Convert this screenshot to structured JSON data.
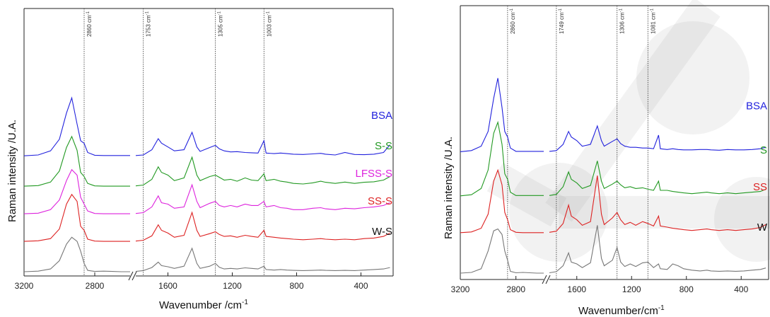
{
  "panels": [
    {
      "ylabel": "Raman intensity /U.A.",
      "xlabel": "Wavenumber /cm",
      "xlabel_sup": "-1",
      "xticks": [
        "3200",
        "2800",
        "1600",
        "1200",
        "800",
        "400"
      ],
      "vlines": [
        {
          "label": "2860 cm",
          "sup": "-1"
        },
        {
          "label": "1753 cm",
          "sup": "-1"
        },
        {
          "label": "1305 cm",
          "sup": "-1"
        },
        {
          "label": "1003 cm",
          "sup": "-1"
        }
      ],
      "series": [
        {
          "name": "BSA",
          "color": "#2222dd"
        },
        {
          "name": "S-S",
          "color": "#229922"
        },
        {
          "name": "LFSS-S",
          "color": "#dd22dd"
        },
        {
          "name": "SS-S",
          "color": "#dd2222"
        },
        {
          "name": "W-S",
          "color": "#111111"
        }
      ]
    },
    {
      "ylabel": "Raman intensity /U.A.",
      "xlabel": "Wavenumber/cm",
      "xlabel_sup": "-1",
      "xticks": [
        "3200",
        "2800",
        "1600",
        "1200",
        "800",
        "400"
      ],
      "vlines": [
        {
          "label": "2860 cm",
          "sup": "-1"
        },
        {
          "label": "1749 cm",
          "sup": "-1"
        },
        {
          "label": "1306 cm",
          "sup": "-1"
        },
        {
          "label": "1081 cm",
          "sup": "-1"
        }
      ],
      "series": [
        {
          "name": "BSA",
          "color": "#2222dd"
        },
        {
          "name": "S",
          "color": "#229922"
        },
        {
          "name": "SS",
          "color": "#dd2222"
        },
        {
          "name": "W",
          "color": "#111111"
        }
      ]
    }
  ],
  "chart_data": [
    {
      "type": "line",
      "xlabel": "Wavenumber /cm-1",
      "ylabel": "Raman intensity /U.A.",
      "x_axis_reversed": true,
      "axis_break": [
        2600,
        1800
      ],
      "xlim": [
        3200,
        200
      ],
      "x_ticks": [
        3200,
        2800,
        1600,
        1200,
        800,
        400
      ],
      "y_ticks": [],
      "annotated_lines_cm-1": [
        2860,
        1753,
        1305,
        1003
      ],
      "x": [
        3200,
        3120,
        3050,
        3000,
        2960,
        2930,
        2900,
        2880,
        2860,
        2840,
        2800,
        2750,
        2700,
        2650,
        2600,
        1800,
        1753,
        1700,
        1660,
        1640,
        1600,
        1560,
        1500,
        1450,
        1420,
        1400,
        1340,
        1305,
        1280,
        1250,
        1210,
        1170,
        1120,
        1080,
        1040,
        1003,
        990,
        940,
        900,
        860,
        820,
        760,
        700,
        650,
        620,
        560,
        500,
        440,
        380,
        320,
        260,
        220
      ],
      "series": [
        {
          "name": "BSA",
          "color": "#2222dd",
          "offset": 4.2,
          "values": [
            0.0,
            0.03,
            0.18,
            0.6,
            1.55,
            2.1,
            1.15,
            0.55,
            0.45,
            0.12,
            0.02,
            0.01,
            0.01,
            0.01,
            0.01,
            0.01,
            0.03,
            0.22,
            0.62,
            0.46,
            0.32,
            0.18,
            0.22,
            0.85,
            0.32,
            0.16,
            0.3,
            0.38,
            0.25,
            0.18,
            0.14,
            0.15,
            0.12,
            0.11,
            0.1,
            0.55,
            0.1,
            0.08,
            0.1,
            0.08,
            0.06,
            0.05,
            0.07,
            0.09,
            0.06,
            0.03,
            0.12,
            0.05,
            0.04,
            0.06,
            0.12,
            0.4
          ]
        },
        {
          "name": "S-S",
          "color": "#229922",
          "offset": 3.1,
          "values": [
            0.0,
            0.02,
            0.15,
            0.55,
            1.4,
            1.8,
            1.3,
            0.5,
            0.35,
            0.1,
            0.01,
            0.0,
            0.0,
            0.0,
            0.0,
            0.01,
            0.04,
            0.25,
            0.7,
            0.5,
            0.4,
            0.2,
            0.3,
            1.05,
            0.4,
            0.2,
            0.35,
            0.4,
            0.32,
            0.22,
            0.25,
            0.18,
            0.3,
            0.22,
            0.2,
            0.45,
            0.2,
            0.25,
            0.18,
            0.15,
            0.1,
            0.08,
            0.12,
            0.18,
            0.14,
            0.1,
            0.15,
            0.1,
            0.14,
            0.16,
            0.22,
            0.35
          ]
        },
        {
          "name": "LFSS-S",
          "color": "#dd22dd",
          "offset": 2.1,
          "values": [
            0.0,
            0.02,
            0.15,
            0.5,
            1.2,
            1.6,
            1.4,
            0.6,
            0.35,
            0.1,
            0.01,
            0.0,
            0.0,
            0.0,
            0.0,
            0.01,
            0.04,
            0.25,
            0.65,
            0.4,
            0.35,
            0.2,
            0.25,
            1.05,
            0.45,
            0.22,
            0.38,
            0.45,
            0.3,
            0.25,
            0.3,
            0.25,
            0.35,
            0.3,
            0.3,
            0.45,
            0.25,
            0.3,
            0.22,
            0.2,
            0.15,
            0.15,
            0.2,
            0.22,
            0.18,
            0.15,
            0.2,
            0.18,
            0.22,
            0.25,
            0.3,
            0.4
          ]
        },
        {
          "name": "SS-S",
          "color": "#dd2222",
          "offset": 1.1,
          "values": [
            0.0,
            0.02,
            0.1,
            0.45,
            1.35,
            1.7,
            1.45,
            0.55,
            0.4,
            0.08,
            0.01,
            0.0,
            0.0,
            0.0,
            0.0,
            0.01,
            0.04,
            0.2,
            0.6,
            0.4,
            0.3,
            0.15,
            0.22,
            1.05,
            0.4,
            0.18,
            0.28,
            0.35,
            0.25,
            0.18,
            0.2,
            0.15,
            0.22,
            0.18,
            0.15,
            0.4,
            0.18,
            0.15,
            0.12,
            0.1,
            0.08,
            0.06,
            0.08,
            0.1,
            0.08,
            0.06,
            0.08,
            0.06,
            0.1,
            0.12,
            0.18,
            0.3
          ]
        },
        {
          "name": "W-S",
          "color": "#777777",
          "offset": 0.0,
          "values": [
            0.0,
            0.02,
            0.1,
            0.4,
            1.0,
            1.25,
            1.1,
            0.75,
            0.3,
            0.05,
            0.01,
            0.02,
            0.01,
            0.0,
            0.0,
            0.01,
            0.04,
            0.15,
            0.35,
            0.22,
            0.18,
            0.12,
            0.2,
            0.85,
            0.3,
            0.12,
            0.2,
            0.3,
            0.16,
            0.1,
            0.12,
            0.1,
            0.14,
            0.12,
            0.1,
            0.2,
            0.08,
            0.06,
            0.08,
            0.06,
            0.05,
            0.04,
            0.05,
            0.06,
            0.05,
            0.04,
            0.05,
            0.04,
            0.06,
            0.08,
            0.1,
            0.15
          ]
        }
      ]
    },
    {
      "type": "line",
      "xlabel": "Wavenumber/cm-1",
      "ylabel": "Raman intensity /U.A.",
      "x_axis_reversed": true,
      "axis_break": [
        2600,
        1800
      ],
      "xlim": [
        3200,
        200
      ],
      "x_ticks": [
        3200,
        2800,
        1600,
        1200,
        800,
        400
      ],
      "y_ticks": [],
      "annotated_lines_cm-1": [
        2860,
        1749,
        1306,
        1081
      ],
      "x": [
        3200,
        3120,
        3050,
        3000,
        2960,
        2930,
        2900,
        2880,
        2860,
        2840,
        2800,
        2750,
        2700,
        2650,
        2600,
        1800,
        1749,
        1700,
        1660,
        1640,
        1600,
        1560,
        1500,
        1450,
        1420,
        1400,
        1340,
        1306,
        1280,
        1250,
        1210,
        1170,
        1120,
        1081,
        1040,
        1003,
        990,
        940,
        900,
        860,
        820,
        760,
        700,
        650,
        620,
        560,
        500,
        440,
        380,
        320,
        260,
        220
      ],
      "series": [
        {
          "name": "BSA",
          "color": "#2222dd",
          "offset": 3.3,
          "values": [
            0.0,
            0.03,
            0.15,
            0.55,
            1.45,
            2.0,
            1.2,
            0.55,
            0.4,
            0.1,
            0.01,
            0.01,
            0.01,
            0.01,
            0.01,
            0.01,
            0.03,
            0.2,
            0.55,
            0.4,
            0.3,
            0.15,
            0.2,
            0.7,
            0.3,
            0.15,
            0.28,
            0.35,
            0.22,
            0.15,
            0.12,
            0.12,
            0.1,
            0.1,
            0.08,
            0.45,
            0.08,
            0.06,
            0.08,
            0.06,
            0.05,
            0.05,
            0.06,
            0.06,
            0.05,
            0.04,
            0.06,
            0.05,
            0.05,
            0.06,
            0.08,
            0.12
          ]
        },
        {
          "name": "S",
          "color": "#229922",
          "offset": 2.1,
          "values": [
            0.0,
            0.03,
            0.2,
            0.7,
            1.7,
            2.0,
            1.4,
            0.6,
            0.45,
            0.1,
            0.01,
            0.01,
            0.01,
            0.01,
            0.01,
            0.01,
            0.04,
            0.25,
            0.65,
            0.45,
            0.35,
            0.2,
            0.28,
            0.95,
            0.4,
            0.2,
            0.32,
            0.4,
            0.3,
            0.22,
            0.25,
            0.2,
            0.22,
            0.18,
            0.15,
            0.4,
            0.15,
            0.15,
            0.12,
            0.1,
            0.08,
            0.06,
            0.08,
            0.1,
            0.08,
            0.06,
            0.08,
            0.06,
            0.08,
            0.1,
            0.12,
            0.18
          ]
        },
        {
          "name": "SS",
          "color": "#dd2222",
          "offset": 1.1,
          "values": [
            0.0,
            0.02,
            0.12,
            0.5,
            1.4,
            1.7,
            1.3,
            0.55,
            0.35,
            0.08,
            0.01,
            0.0,
            0.0,
            0.0,
            0.0,
            0.01,
            0.04,
            0.25,
            0.75,
            0.45,
            0.35,
            0.2,
            0.3,
            1.55,
            0.5,
            0.22,
            0.4,
            0.55,
            0.35,
            0.22,
            0.28,
            0.2,
            0.3,
            0.25,
            0.18,
            0.45,
            0.18,
            0.15,
            0.12,
            0.1,
            0.08,
            0.06,
            0.08,
            0.1,
            0.08,
            0.06,
            0.08,
            0.06,
            0.08,
            0.1,
            0.14,
            0.22
          ]
        },
        {
          "name": "W",
          "color": "#777777",
          "offset": 0.0,
          "values": [
            0.0,
            0.02,
            0.12,
            0.6,
            1.15,
            1.2,
            1.05,
            0.6,
            0.35,
            0.05,
            0.01,
            0.02,
            0.01,
            0.0,
            0.0,
            0.01,
            0.04,
            0.2,
            0.55,
            0.3,
            0.25,
            0.15,
            0.28,
            1.3,
            0.4,
            0.2,
            0.35,
            0.7,
            0.3,
            0.18,
            0.25,
            0.18,
            0.28,
            0.3,
            0.15,
            0.25,
            0.12,
            0.1,
            0.25,
            0.2,
            0.12,
            0.08,
            0.06,
            0.08,
            0.06,
            0.05,
            0.06,
            0.05,
            0.06,
            0.08,
            0.1,
            0.14
          ]
        }
      ]
    }
  ]
}
